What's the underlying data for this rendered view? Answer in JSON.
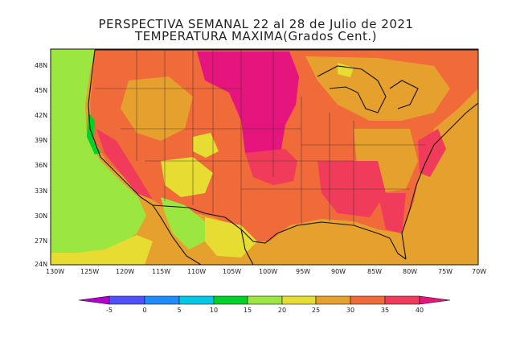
{
  "header": {
    "line1": "PERSPECTIVA SEMANAL  22 al 28 de Julio de 2021",
    "line2": "TEMPERATURA MAXIMA(Grados Cent.)"
  },
  "axes": {
    "lat_ticks": [
      "48N",
      "45N",
      "42N",
      "39N",
      "36N",
      "33N",
      "30N",
      "27N",
      "24N"
    ],
    "lon_ticks": [
      "130W",
      "125W",
      "120W",
      "115W",
      "110W",
      "105W",
      "100W",
      "95W",
      "90W",
      "85W",
      "80W",
      "75W",
      "70W"
    ]
  },
  "legend": {
    "labels": [
      "-5",
      "0",
      "5",
      "10",
      "15",
      "20",
      "25",
      "30",
      "35",
      "40"
    ],
    "colors": {
      "lt_-5": "#b400d2",
      "-5_0": "#5050ff",
      "0_5": "#1e8cff",
      "5_10": "#00c8e6",
      "10_15": "#00d228",
      "15_20": "#9be641",
      "20_25": "#e6dc32",
      "25_30": "#e6a02d",
      "30_35": "#f06a3a",
      "35_40": "#f03c5a",
      "gt_40": "#e6147d"
    }
  }
}
